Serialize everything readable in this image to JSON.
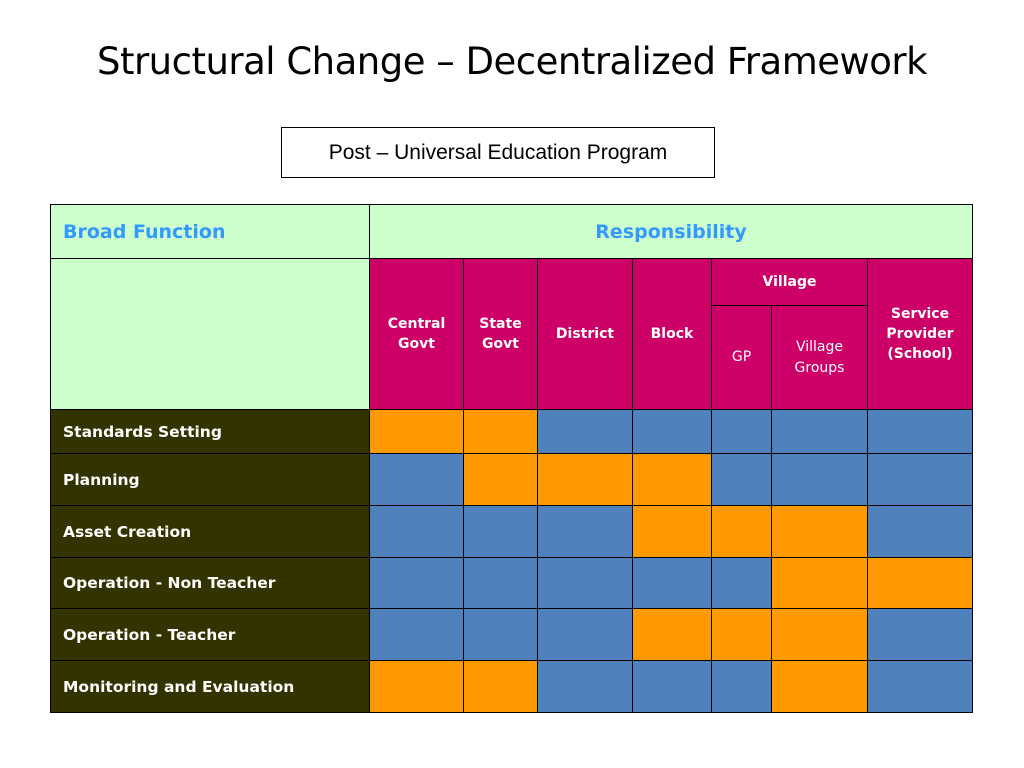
{
  "slide": {
    "title": "Structural Change – Decentralized Framework",
    "subtitle": "Post – Universal Education Program"
  },
  "table": {
    "col_header_function": "Broad Function",
    "col_header_responsibility": "Responsibility",
    "levels": {
      "central_govt": "Central Govt",
      "state_govt": "State Govt",
      "district": "District",
      "block": "Block",
      "village": "Village",
      "gp": "GP",
      "village_groups": "Village Groups",
      "service_provider": "Service Provider (School)"
    },
    "colors": {
      "responsible": "#ff9900",
      "not_responsible": "#4f81bd",
      "header_green": "#ccffcc",
      "header_magenta": "#cc0066",
      "row_label_bg": "#333300"
    },
    "rows": [
      {
        "label": "Standards Setting",
        "cells": [
          "orange",
          "orange",
          "blue",
          "blue",
          "blue",
          "blue",
          "blue"
        ]
      },
      {
        "label": "Planning",
        "cells": [
          "blue",
          "orange",
          "orange",
          "orange",
          "blue",
          "blue",
          "blue"
        ]
      },
      {
        "label": "Asset Creation",
        "cells": [
          "blue",
          "blue",
          "blue",
          "orange",
          "orange",
          "orange",
          "blue"
        ]
      },
      {
        "label": "Operation - Non Teacher",
        "cells": [
          "blue",
          "blue",
          "blue",
          "blue",
          "blue",
          "orange",
          "orange"
        ]
      },
      {
        "label": "Operation - Teacher",
        "cells": [
          "blue",
          "blue",
          "blue",
          "orange",
          "orange",
          "orange",
          "blue"
        ]
      },
      {
        "label": "Monitoring and Evaluation",
        "cells": [
          "orange",
          "orange",
          "blue",
          "blue",
          "blue",
          "orange",
          "blue"
        ]
      }
    ]
  }
}
